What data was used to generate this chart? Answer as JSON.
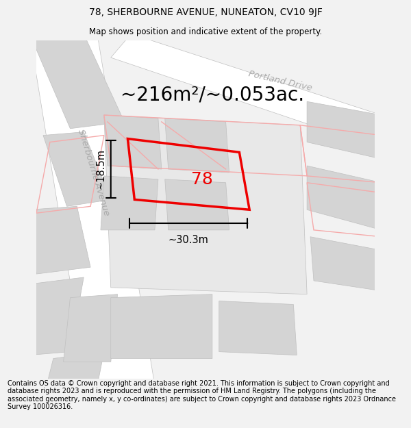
{
  "title": "78, SHERBOURNE AVENUE, NUNEATON, CV10 9JF",
  "subtitle": "Map shows position and indicative extent of the property.",
  "area_text": "~216m²/~0.053ac.",
  "label_78": "78",
  "dim_width": "~30.3m",
  "dim_height": "~18.5m",
  "street_label_1": "Portland Drive",
  "street_label_2": "Sherbourne Avenue",
  "footer": "Contains OS data © Crown copyright and database right 2021. This information is subject to Crown copyright and database rights 2023 and is reproduced with the permission of HM Land Registry. The polygons (including the associated geometry, namely x, y co-ordinates) are subject to Crown copyright and database rights 2023 Ordnance Survey 100026316.",
  "bg_color": "#f2f2f2",
  "map_bg": "#ebebeb",
  "red_color": "#ee0000",
  "pink_color": "#f5aaaa",
  "gray_building": "#d4d4d4",
  "white_road": "#ffffff",
  "road_edge": "#c0c0c0",
  "title_fontsize": 10,
  "subtitle_fontsize": 8.5,
  "footer_fontsize": 7.0,
  "area_fontsize": 20,
  "label_fontsize": 18,
  "street_fontsize": 9.5,
  "dim_fontsize": 10.5
}
